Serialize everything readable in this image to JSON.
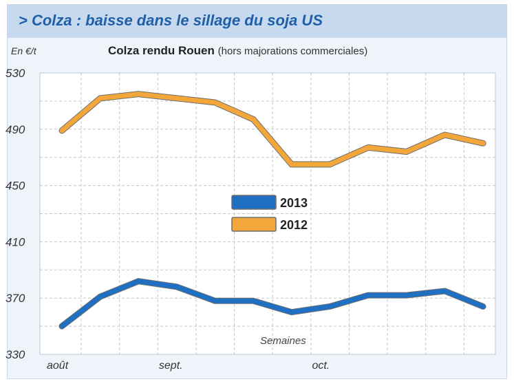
{
  "header": {
    "title": "> Colza : baisse dans le sillage du soja US"
  },
  "chart_data": {
    "type": "line",
    "title": "Colza rendu Rouen",
    "subtitle": "(hors majorations commerciales)",
    "ylabel": "En €/t",
    "xlabel": "Semaines",
    "ylim": [
      330,
      530
    ],
    "yticks": [
      530,
      490,
      450,
      410,
      370,
      330
    ],
    "x_month_labels": [
      "août",
      "sept.",
      "oct."
    ],
    "grid": true,
    "legend_position": "center",
    "colors": {
      "2013": "#1f6fc2",
      "2012": "#f3a63a"
    },
    "series": [
      {
        "name": "2013",
        "values": [
          350,
          371,
          382,
          378,
          368,
          368,
          360,
          364,
          372,
          372,
          375,
          364
        ]
      },
      {
        "name": "2012",
        "values": [
          489,
          512,
          515,
          512,
          509,
          497,
          465,
          465,
          477,
          474,
          486,
          480
        ]
      }
    ]
  }
}
